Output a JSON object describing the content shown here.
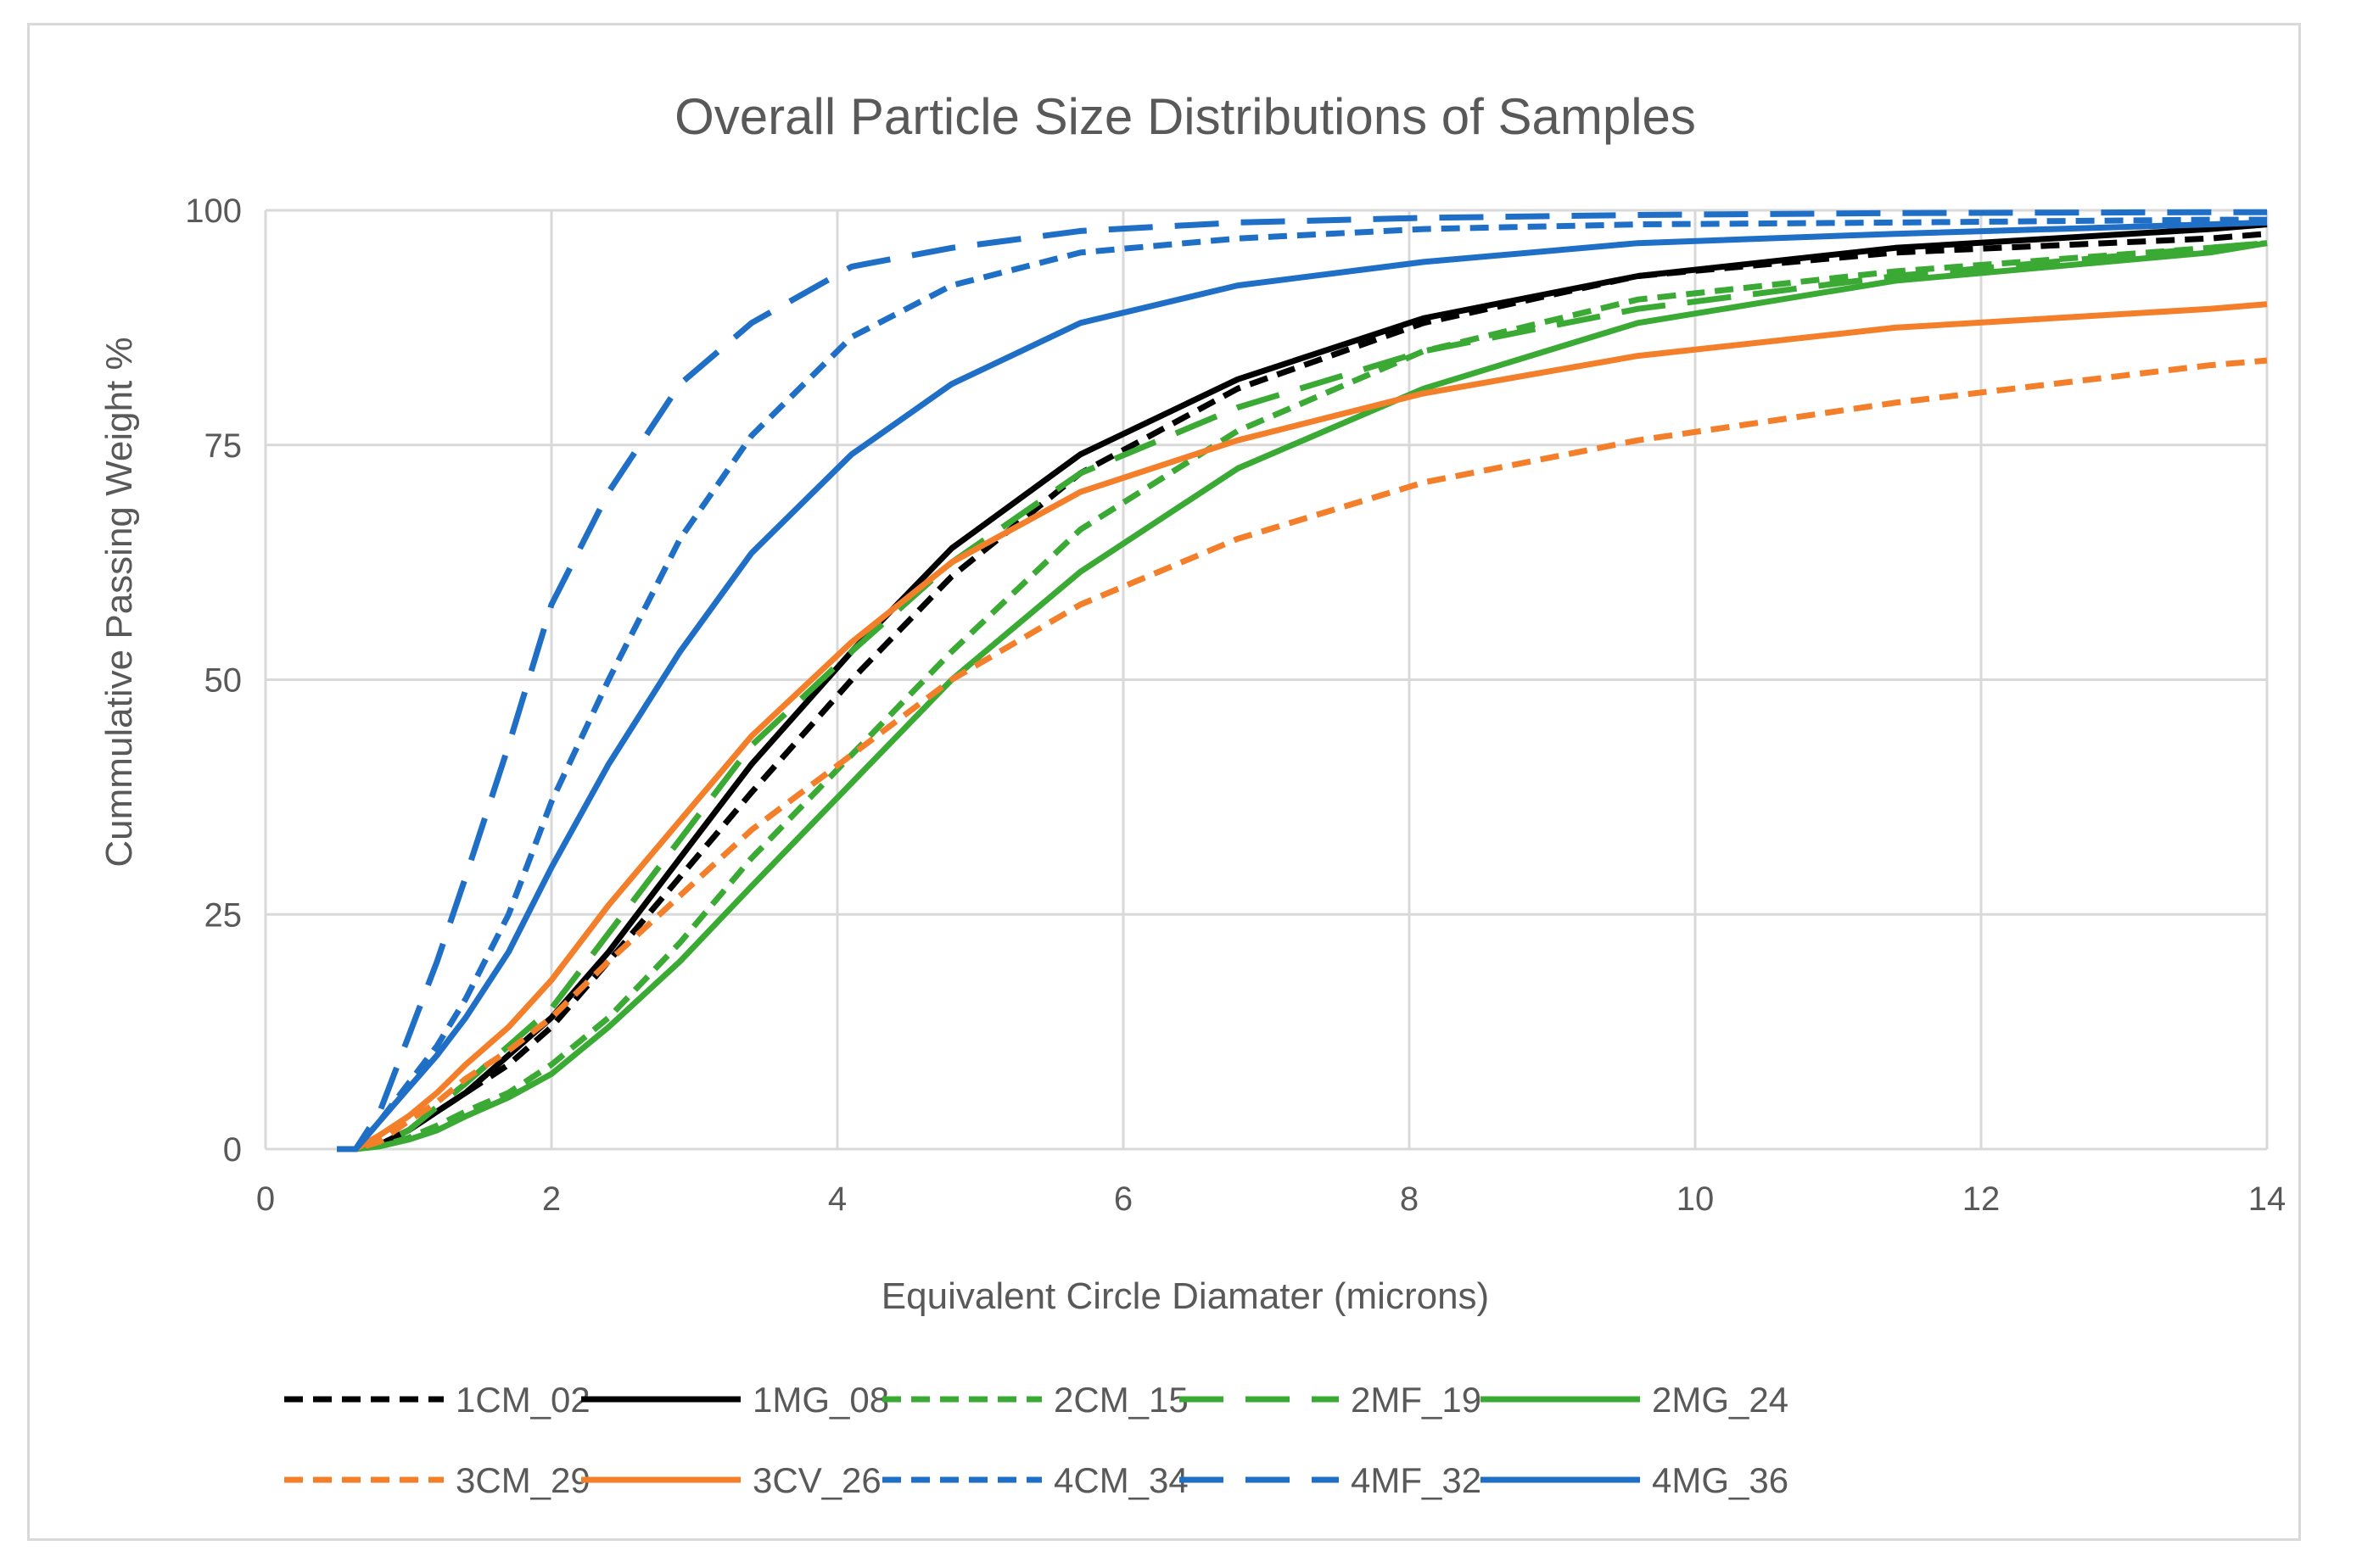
{
  "chart_data": {
    "type": "line",
    "title": "Overall Particle Size Distributions of Samples",
    "xlabel": "Equivalent Circle Diamater (microns)",
    "ylabel": "Cummulative Passing Weight %",
    "xlim": [
      0,
      14
    ],
    "ylim": [
      0,
      100
    ],
    "xticks": [
      0,
      2,
      4,
      6,
      8,
      10,
      12,
      14
    ],
    "yticks": [
      0,
      25,
      50,
      75,
      100
    ],
    "grid": true,
    "legend_position": "bottom",
    "series": [
      {
        "name": "1CM_02",
        "color": "#000000",
        "dash": "short",
        "x": [
          0.5,
          0.63,
          0.8,
          1.0,
          1.2,
          1.4,
          1.7,
          2.0,
          2.4,
          2.9,
          3.4,
          4.1,
          4.8,
          5.7,
          6.8,
          8.1,
          9.6,
          11.4,
          13.6,
          14.0
        ],
        "y": [
          0,
          0,
          0.5,
          2,
          4,
          6,
          9,
          13,
          20,
          29,
          38,
          50,
          61,
          72,
          81,
          88,
          93,
          95.5,
          97,
          97.5
        ]
      },
      {
        "name": "1MG_08",
        "color": "#000000",
        "dash": "solid",
        "x": [
          0.5,
          0.63,
          0.8,
          1.0,
          1.2,
          1.4,
          1.7,
          2.0,
          2.4,
          2.9,
          3.4,
          4.1,
          4.8,
          5.7,
          6.8,
          8.1,
          9.6,
          11.4,
          13.6,
          14.0
        ],
        "y": [
          0,
          0,
          0.5,
          2,
          4,
          6,
          10,
          14,
          21,
          31,
          41,
          53,
          64,
          74,
          82,
          88.5,
          93,
          96,
          98,
          98.5
        ]
      },
      {
        "name": "2CM_15",
        "color": "#3aaa35",
        "dash": "short",
        "x": [
          0.5,
          0.63,
          0.8,
          1.0,
          1.2,
          1.4,
          1.7,
          2.0,
          2.4,
          2.9,
          3.4,
          4.1,
          4.8,
          5.7,
          6.8,
          8.1,
          9.6,
          11.4,
          13.6,
          14.0
        ],
        "y": [
          0,
          0,
          0.3,
          1.2,
          2.5,
          4,
          6,
          9,
          14,
          22,
          31,
          42,
          53,
          66,
          76.5,
          85,
          90.5,
          93.5,
          96,
          96.5
        ]
      },
      {
        "name": "2MF_19",
        "color": "#3aaa35",
        "dash": "long",
        "x": [
          0.5,
          0.63,
          0.8,
          1.0,
          1.2,
          1.4,
          1.7,
          2.0,
          2.4,
          2.9,
          3.4,
          4.1,
          4.8,
          5.7,
          6.8,
          8.1,
          9.6,
          11.4,
          13.6,
          14.0
        ],
        "y": [
          0,
          0,
          0.5,
          2,
          4.5,
          7,
          11,
          15,
          23,
          33,
          43,
          53,
          62.5,
          72,
          79,
          85,
          89.5,
          93,
          96,
          96.5
        ]
      },
      {
        "name": "2MG_24",
        "color": "#3aaa35",
        "dash": "solid",
        "x": [
          0.5,
          0.63,
          0.8,
          1.0,
          1.2,
          1.4,
          1.7,
          2.0,
          2.4,
          2.9,
          3.4,
          4.1,
          4.8,
          5.7,
          6.8,
          8.1,
          9.6,
          11.4,
          13.6,
          14.0
        ],
        "y": [
          0,
          0,
          0.3,
          1,
          2,
          3.5,
          5.5,
          8,
          13,
          20,
          28,
          39,
          50,
          61.5,
          72.5,
          81,
          88,
          92.5,
          95.5,
          96.5
        ]
      },
      {
        "name": "3CM_29",
        "color": "#f47f2b",
        "dash": "short",
        "x": [
          0.5,
          0.63,
          0.8,
          1.0,
          1.2,
          1.4,
          1.7,
          2.0,
          2.4,
          2.9,
          3.4,
          4.1,
          4.8,
          5.7,
          6.8,
          8.1,
          9.6,
          11.4,
          13.6,
          14.0
        ],
        "y": [
          0,
          0,
          0.8,
          3,
          5,
          7.5,
          10.5,
          14,
          20,
          27,
          34,
          42,
          50,
          58,
          65,
          71,
          75.5,
          79.5,
          83.5,
          84
        ]
      },
      {
        "name": "3CV_26",
        "color": "#f47f2b",
        "dash": "solid",
        "x": [
          0.5,
          0.63,
          0.8,
          1.0,
          1.2,
          1.4,
          1.7,
          2.0,
          2.4,
          2.9,
          3.4,
          4.1,
          4.8,
          5.7,
          6.8,
          8.1,
          9.6,
          11.4,
          13.6,
          14.0
        ],
        "y": [
          0,
          0,
          1.5,
          3.5,
          6,
          9,
          13,
          18,
          26,
          35,
          44,
          54,
          62.5,
          70,
          75.5,
          80.5,
          84.5,
          87.5,
          89.5,
          90
        ]
      },
      {
        "name": "4CM_34",
        "color": "#1f6fc6",
        "dash": "short",
        "x": [
          0.5,
          0.63,
          0.8,
          1.0,
          1.2,
          1.4,
          1.7,
          2.0,
          2.4,
          2.9,
          3.4,
          4.1,
          4.8,
          5.7,
          6.8,
          8.1,
          9.6,
          11.4,
          13.6,
          14.0
        ],
        "y": [
          0,
          0,
          3,
          7,
          11,
          16,
          25,
          37,
          50,
          65,
          76,
          86.5,
          92,
          95.5,
          97,
          98,
          98.5,
          98.7,
          99,
          99
        ]
      },
      {
        "name": "4MF_32",
        "color": "#1f6fc6",
        "dash": "long",
        "x": [
          0.5,
          0.63,
          0.8,
          1.0,
          1.2,
          1.4,
          1.7,
          2.0,
          2.4,
          2.9,
          3.4,
          4.1,
          4.8,
          5.7,
          6.8,
          8.1,
          9.6,
          11.4,
          13.6,
          14.0
        ],
        "y": [
          0,
          0,
          4,
          12,
          20,
          29,
          43,
          58,
          70,
          81.5,
          88,
          94,
          96,
          97.8,
          98.7,
          99.2,
          99.5,
          99.7,
          99.8,
          99.8
        ]
      },
      {
        "name": "4MG_36",
        "color": "#1f6fc6",
        "dash": "solid",
        "x": [
          0.5,
          0.63,
          0.8,
          1.0,
          1.2,
          1.4,
          1.7,
          2.0,
          2.4,
          2.9,
          3.4,
          4.1,
          4.8,
          5.7,
          6.8,
          8.1,
          9.6,
          11.4,
          13.6,
          14.0
        ],
        "y": [
          0,
          0,
          3,
          6.5,
          10,
          14,
          21,
          30,
          41,
          53,
          63.5,
          74,
          81.5,
          88,
          92,
          94.5,
          96.5,
          97.5,
          98.5,
          98.7
        ]
      }
    ]
  }
}
